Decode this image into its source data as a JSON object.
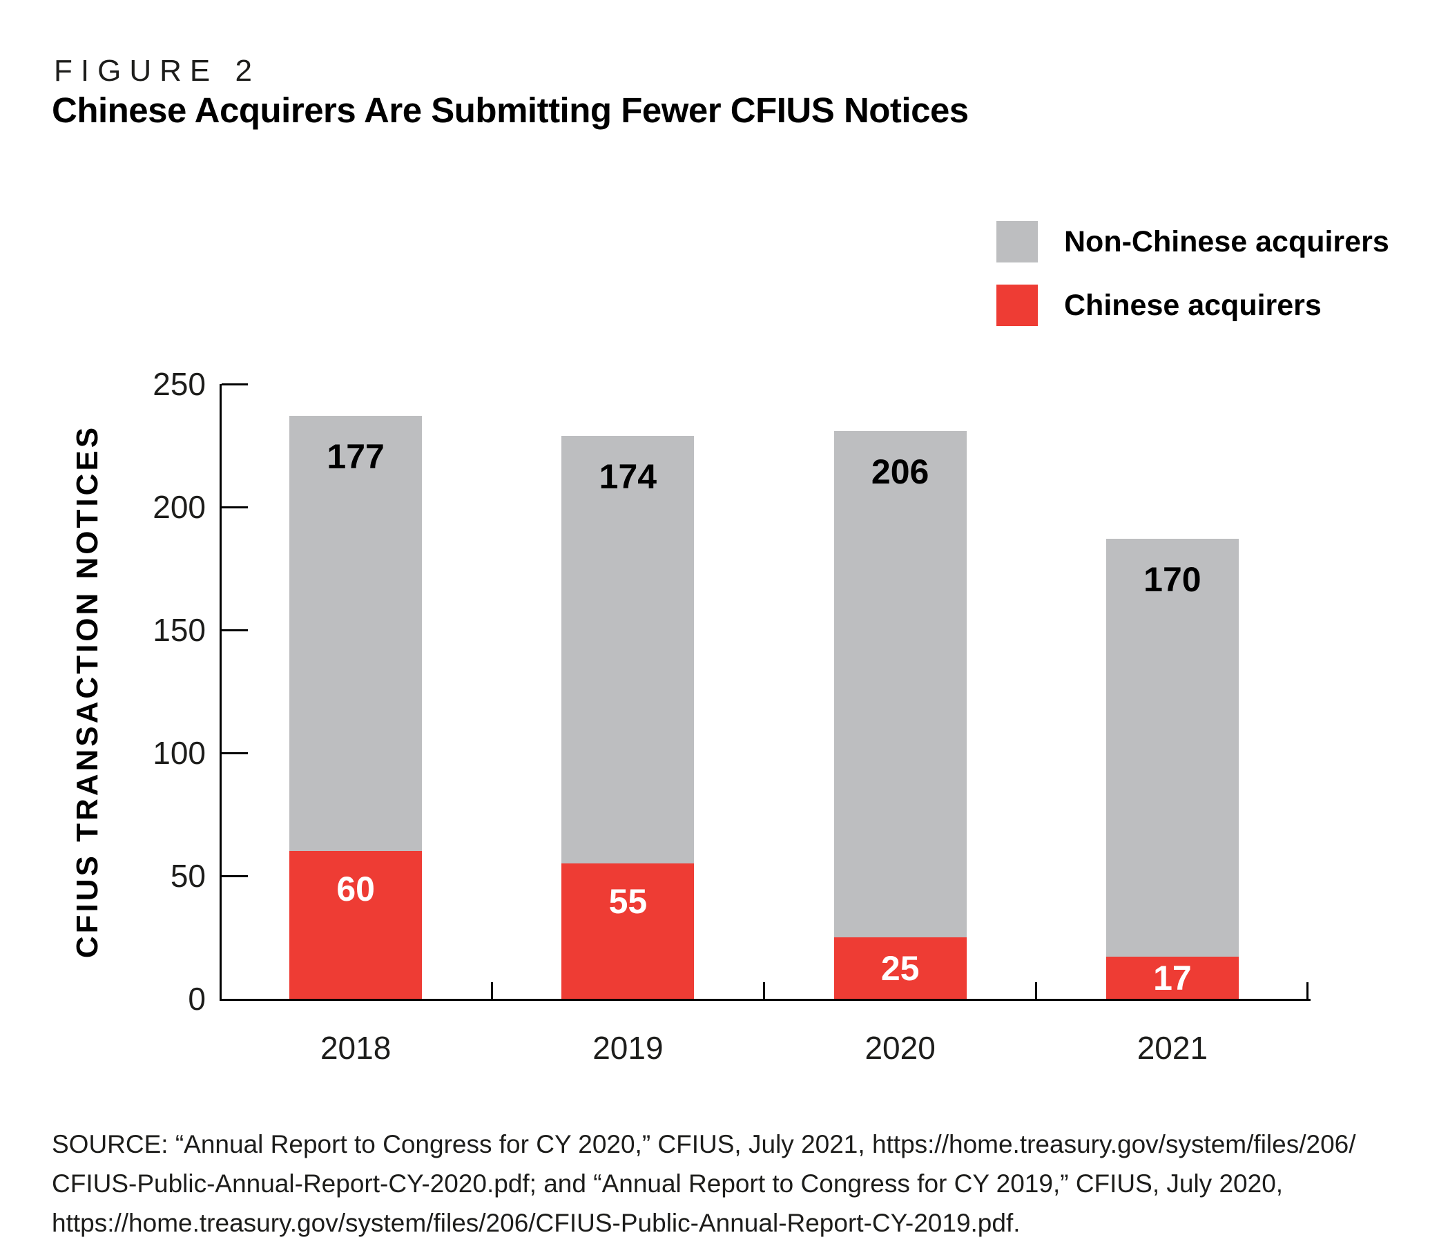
{
  "figure": {
    "label": "FIGURE 2",
    "title": "Chinese Acquirers Are Submitting Fewer CFIUS Notices"
  },
  "legend": [
    {
      "label": "Non-Chinese acquirers",
      "color": "#bdbec0"
    },
    {
      "label": "Chinese acquirers",
      "color": "#ee3c34"
    }
  ],
  "chart_data": {
    "type": "bar",
    "stacked": true,
    "categories": [
      "2018",
      "2019",
      "2020",
      "2021"
    ],
    "series": [
      {
        "name": "Chinese acquirers",
        "color": "#ee3c34",
        "label_color": "#ffffff",
        "values": [
          60,
          55,
          25,
          17
        ]
      },
      {
        "name": "Non-Chinese acquirers",
        "color": "#bdbec0",
        "label_color": "#000000",
        "values": [
          177,
          174,
          206,
          170
        ]
      }
    ],
    "totals": [
      237,
      229,
      231,
      187
    ],
    "title": "Chinese Acquirers Are Submitting Fewer CFIUS Notices",
    "xlabel": "",
    "ylabel": "CFIUS TRANSACTION NOTICES",
    "yticks": [
      0,
      50,
      100,
      150,
      200,
      250
    ],
    "ylim": [
      0,
      250
    ],
    "grid": false,
    "legend_position": "top-right",
    "tick_direction": "in"
  },
  "source": {
    "lines": [
      "SOURCE: “Annual Report to Congress for CY 2020,” CFIUS, July 2021, https://home.treasury.gov/system/files/206/",
      "CFIUS-Public-Annual-Report-CY-2020.pdf; and “Annual Report to Congress for CY 2019,” CFIUS, July 2020,",
      "https://home.treasury.gov/system/files/206/CFIUS-Public-Annual-Report-CY-2019.pdf."
    ]
  }
}
